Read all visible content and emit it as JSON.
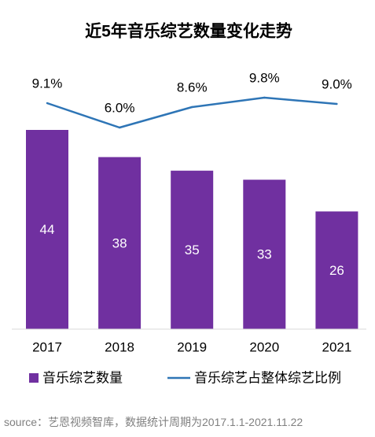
{
  "chart_data": {
    "type": "bar",
    "title": "近5年音乐综艺数量变化走势",
    "categories": [
      "2017",
      "2018",
      "2019",
      "2020",
      "2021"
    ],
    "series": [
      {
        "name": "音乐综艺数量",
        "type": "bar",
        "values": [
          44,
          38,
          35,
          33,
          26
        ],
        "labels": [
          "44",
          "38",
          "35",
          "33",
          "26"
        ],
        "color": "#7030A0"
      },
      {
        "name": "音乐综艺占整体综艺比例",
        "type": "line",
        "values": [
          9.1,
          6.0,
          8.6,
          9.8,
          9.0
        ],
        "labels": [
          "9.1%",
          "6.0%",
          "8.6%",
          "9.8%",
          "9.0%"
        ],
        "color": "#2E75B6"
      }
    ],
    "legend_position": "bottom",
    "grid": false
  },
  "footer": {
    "source": "source：艺恩视频智库，数据统计周期为2017.1.1-2021.11.22"
  }
}
